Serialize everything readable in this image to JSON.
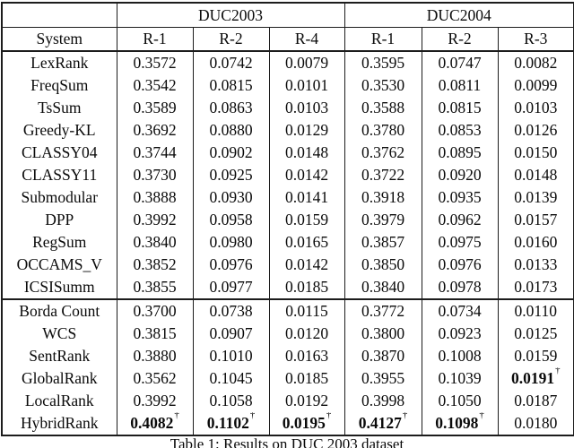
{
  "page": {
    "caption": "Table 1: Results on DUC 2003 dataset"
  },
  "table": {
    "corner_label": "",
    "group_headers": [
      {
        "label": "DUC2003",
        "colspan": 3
      },
      {
        "label": "DUC2004",
        "colspan": 3
      }
    ],
    "column_headers": [
      "System",
      "R-1",
      "R-2",
      "R-4",
      "R-1",
      "R-2",
      "R-3"
    ],
    "sections": [
      {
        "name": "baseline-systems",
        "rows": [
          {
            "system": "LexRank",
            "cells": [
              {
                "v": "0.3572"
              },
              {
                "v": "0.0742"
              },
              {
                "v": "0.0079"
              },
              {
                "v": "0.3595"
              },
              {
                "v": "0.0747"
              },
              {
                "v": "0.0082"
              }
            ]
          },
          {
            "system": "FreqSum",
            "cells": [
              {
                "v": "0.3542"
              },
              {
                "v": "0.0815"
              },
              {
                "v": "0.0101"
              },
              {
                "v": "0.3530"
              },
              {
                "v": "0.0811"
              },
              {
                "v": "0.0099"
              }
            ]
          },
          {
            "system": "TsSum",
            "cells": [
              {
                "v": "0.3589"
              },
              {
                "v": "0.0863"
              },
              {
                "v": "0.0103"
              },
              {
                "v": "0.3588"
              },
              {
                "v": "0.0815"
              },
              {
                "v": "0.0103"
              }
            ]
          },
          {
            "system": "Greedy-KL",
            "cells": [
              {
                "v": "0.3692"
              },
              {
                "v": "0.0880"
              },
              {
                "v": "0.0129"
              },
              {
                "v": "0.3780"
              },
              {
                "v": "0.0853"
              },
              {
                "v": "0.0126"
              }
            ]
          },
          {
            "system": "CLASSY04",
            "cells": [
              {
                "v": "0.3744"
              },
              {
                "v": "0.0902"
              },
              {
                "v": "0.0148"
              },
              {
                "v": "0.3762"
              },
              {
                "v": "0.0895"
              },
              {
                "v": "0.0150"
              }
            ]
          },
          {
            "system": "CLASSY11",
            "cells": [
              {
                "v": "0.3730"
              },
              {
                "v": "0.0925"
              },
              {
                "v": "0.0142"
              },
              {
                "v": "0.3722"
              },
              {
                "v": "0.0920"
              },
              {
                "v": "0.0148"
              }
            ]
          },
          {
            "system": "Submodular",
            "cells": [
              {
                "v": "0.3888"
              },
              {
                "v": "0.0930"
              },
              {
                "v": "0.0141"
              },
              {
                "v": "0.3918"
              },
              {
                "v": "0.0935"
              },
              {
                "v": "0.0139"
              }
            ]
          },
          {
            "system": "DPP",
            "cells": [
              {
                "v": "0.3992"
              },
              {
                "v": "0.0958"
              },
              {
                "v": "0.0159"
              },
              {
                "v": "0.3979"
              },
              {
                "v": "0.0962"
              },
              {
                "v": "0.0157"
              }
            ]
          },
          {
            "system": "RegSum",
            "cells": [
              {
                "v": "0.3840"
              },
              {
                "v": "0.0980"
              },
              {
                "v": "0.0165"
              },
              {
                "v": "0.3857"
              },
              {
                "v": "0.0975"
              },
              {
                "v": "0.0160"
              }
            ]
          },
          {
            "system": "OCCAMS_V",
            "cells": [
              {
                "v": "0.3852"
              },
              {
                "v": "0.0976"
              },
              {
                "v": "0.0142"
              },
              {
                "v": "0.3850"
              },
              {
                "v": "0.0976"
              },
              {
                "v": "0.0133"
              }
            ]
          },
          {
            "system": "ICSISumm",
            "cells": [
              {
                "v": "0.3855"
              },
              {
                "v": "0.0977"
              },
              {
                "v": "0.0185"
              },
              {
                "v": "0.3840"
              },
              {
                "v": "0.0978"
              },
              {
                "v": "0.0173"
              }
            ]
          }
        ]
      },
      {
        "name": "ranking-systems",
        "rows": [
          {
            "system": "Borda Count",
            "cells": [
              {
                "v": "0.3700"
              },
              {
                "v": "0.0738"
              },
              {
                "v": "0.0115"
              },
              {
                "v": "0.3772"
              },
              {
                "v": "0.0734"
              },
              {
                "v": "0.0110"
              }
            ]
          },
          {
            "system": "WCS",
            "cells": [
              {
                "v": "0.3815"
              },
              {
                "v": "0.0907"
              },
              {
                "v": "0.0120"
              },
              {
                "v": "0.3800"
              },
              {
                "v": "0.0923"
              },
              {
                "v": "0.0125"
              }
            ]
          },
          {
            "system": "SentRank",
            "cells": [
              {
                "v": "0.3880"
              },
              {
                "v": "0.1010"
              },
              {
                "v": "0.0163"
              },
              {
                "v": "0.3870"
              },
              {
                "v": "0.1008"
              },
              {
                "v": "0.0159"
              }
            ]
          },
          {
            "system": "GlobalRank",
            "cells": [
              {
                "v": "0.3562"
              },
              {
                "v": "0.1045"
              },
              {
                "v": "0.0185"
              },
              {
                "v": "0.3955"
              },
              {
                "v": "0.1039"
              },
              {
                "v": "0.0191",
                "bold": true,
                "sup": "†"
              }
            ]
          },
          {
            "system": "LocalRank",
            "cells": [
              {
                "v": "0.3992"
              },
              {
                "v": "0.1058"
              },
              {
                "v": "0.0192"
              },
              {
                "v": "0.3998"
              },
              {
                "v": "0.1050"
              },
              {
                "v": "0.0187"
              }
            ]
          },
          {
            "system": "HybridRank",
            "cells": [
              {
                "v": "0.4082",
                "bold": true,
                "sup": "†"
              },
              {
                "v": "0.1102",
                "bold": true,
                "sup": "†"
              },
              {
                "v": "0.0195",
                "bold": true,
                "sup": "†"
              },
              {
                "v": "0.4127",
                "bold": true,
                "sup": "†"
              },
              {
                "v": "0.1098",
                "bold": true,
                "sup": "†"
              },
              {
                "v": "0.0180"
              }
            ]
          }
        ]
      }
    ]
  }
}
